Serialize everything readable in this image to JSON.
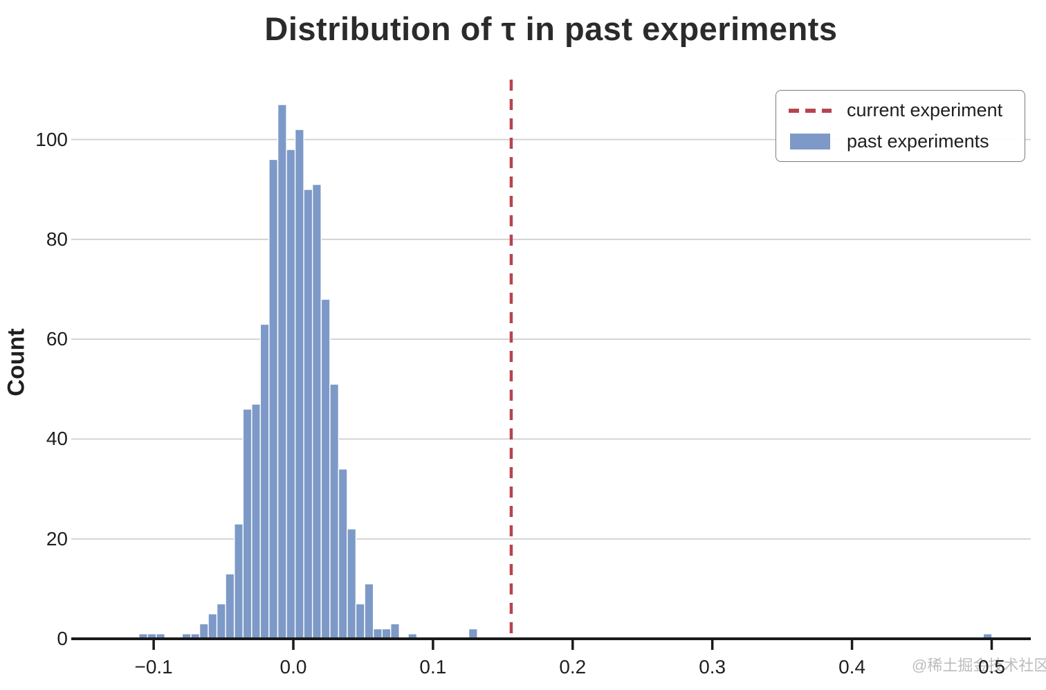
{
  "figure": {
    "title": {
      "pre": "Distribution of ",
      "tau": "τ",
      "hat": "ˆ",
      "post": " in past experiments",
      "full": "Distribution of τ̂ in past experiments"
    },
    "watermark": "@稀土掘金技术社区"
  },
  "chart_data": {
    "type": "histogram",
    "title": "Distribution of τ̂ in past experiments",
    "xlabel": "",
    "ylabel": "Count",
    "grid": "horizontal-light-gray",
    "legend_position": "upper right",
    "legend": [
      {
        "label": "current experiment",
        "marker": "dashed-line",
        "color": "#b5464e"
      },
      {
        "label": "past experiments",
        "marker": "bar",
        "color": "#7d99c7"
      }
    ],
    "colors": {
      "bar_fill": "#7d99c7",
      "bar_edge": "#ffffff",
      "vline": "#b5464e",
      "grid": "#d3d3d3",
      "axis": "#1a1a1a",
      "text": "#1f1f1f",
      "title": "#2b2b2b"
    },
    "xlim": [
      -0.159,
      0.528
    ],
    "ylim": [
      0,
      112
    ],
    "x_ticks": [
      -0.1,
      0.0,
      0.1,
      0.2,
      0.3,
      0.4,
      0.5
    ],
    "x_tick_labels": [
      "−0.1",
      "0.0",
      "0.1",
      "0.2",
      "0.3",
      "0.4",
      "0.5"
    ],
    "y_ticks": [
      0,
      20,
      40,
      60,
      80,
      100
    ],
    "bin_width": 0.0062,
    "bars": [
      {
        "x": -0.1106,
        "count": 1
      },
      {
        "x": -0.1044,
        "count": 1
      },
      {
        "x": -0.0982,
        "count": 1
      },
      {
        "x": -0.0796,
        "count": 1
      },
      {
        "x": -0.0733,
        "count": 1
      },
      {
        "x": -0.0671,
        "count": 3
      },
      {
        "x": -0.0609,
        "count": 5
      },
      {
        "x": -0.0547,
        "count": 7
      },
      {
        "x": -0.0485,
        "count": 13
      },
      {
        "x": -0.0422,
        "count": 23
      },
      {
        "x": -0.036,
        "count": 46
      },
      {
        "x": -0.0298,
        "count": 47
      },
      {
        "x": -0.0236,
        "count": 63
      },
      {
        "x": -0.0174,
        "count": 96
      },
      {
        "x": -0.0111,
        "count": 107
      },
      {
        "x": -0.0049,
        "count": 98
      },
      {
        "x": 0.0013,
        "count": 102
      },
      {
        "x": 0.0075,
        "count": 90
      },
      {
        "x": 0.0137,
        "count": 91
      },
      {
        "x": 0.02,
        "count": 68
      },
      {
        "x": 0.0262,
        "count": 51
      },
      {
        "x": 0.0324,
        "count": 34
      },
      {
        "x": 0.0386,
        "count": 22
      },
      {
        "x": 0.0448,
        "count": 7
      },
      {
        "x": 0.0511,
        "count": 11
      },
      {
        "x": 0.0573,
        "count": 2
      },
      {
        "x": 0.0635,
        "count": 2
      },
      {
        "x": 0.0697,
        "count": 3
      },
      {
        "x": 0.0822,
        "count": 1
      },
      {
        "x": 0.1256,
        "count": 2
      },
      {
        "x": 0.494,
        "count": 1
      }
    ],
    "vline": {
      "x": 0.156,
      "style": "dashed",
      "color": "#b5464e",
      "label": "current experiment"
    }
  }
}
